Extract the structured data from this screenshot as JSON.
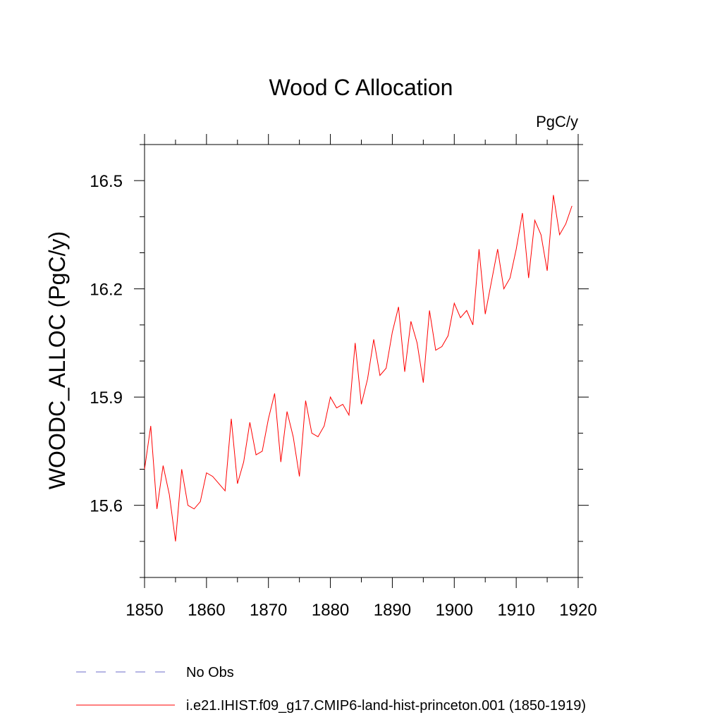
{
  "chart_data": {
    "type": "line",
    "title": "Wood C Allocation",
    "units_label": "PgC/y",
    "ylabel": "WOODC_ALLOC  (PgC/y)",
    "xlabel": "",
    "xlim": [
      1850,
      1920
    ],
    "ylim": [
      15.4,
      16.6
    ],
    "x_ticks": [
      1850,
      1860,
      1870,
      1880,
      1890,
      1900,
      1910,
      1920
    ],
    "x_tick_labels": [
      "1850",
      "1860",
      "1870",
      "1880",
      "1890",
      "1900",
      "1910",
      "1920"
    ],
    "y_ticks": [
      15.6,
      15.9,
      16.2,
      16.5
    ],
    "y_tick_labels": [
      "15.6",
      "15.9",
      "16.2",
      "16.5"
    ],
    "x_minor_ticks": [
      1855,
      1865,
      1875,
      1885,
      1895,
      1905,
      1915
    ],
    "y_minor_ticks": [
      15.4,
      15.5,
      15.7,
      15.8,
      16.0,
      16.1,
      16.3,
      16.4,
      16.6
    ],
    "grid": false,
    "legend_position": "bottom",
    "legend": [
      {
        "label": "No Obs",
        "style": "dashed",
        "color": "#6b6bc8"
      },
      {
        "label": "i.e21.IHIST.f09_g17.CMIP6-land-hist-princeton.001 (1850-1919)",
        "style": "solid",
        "color": "#ff0000"
      }
    ],
    "series": [
      {
        "name": "i.e21.IHIST.f09_g17.CMIP6-land-hist-princeton.001 (1850-1919)",
        "color": "#ff0000",
        "x": [
          1850,
          1851,
          1852,
          1853,
          1854,
          1855,
          1856,
          1857,
          1858,
          1859,
          1860,
          1861,
          1862,
          1863,
          1864,
          1865,
          1866,
          1867,
          1868,
          1869,
          1870,
          1871,
          1872,
          1873,
          1874,
          1875,
          1876,
          1877,
          1878,
          1879,
          1880,
          1881,
          1882,
          1883,
          1884,
          1885,
          1886,
          1887,
          1888,
          1889,
          1890,
          1891,
          1892,
          1893,
          1894,
          1895,
          1896,
          1897,
          1898,
          1899,
          1900,
          1901,
          1902,
          1903,
          1904,
          1905,
          1906,
          1907,
          1908,
          1909,
          1910,
          1911,
          1912,
          1913,
          1914,
          1915,
          1916,
          1917,
          1918,
          1919
        ],
        "values": [
          15.7,
          15.82,
          15.59,
          15.71,
          15.63,
          15.5,
          15.7,
          15.6,
          15.59,
          15.61,
          15.69,
          15.68,
          15.66,
          15.64,
          15.84,
          15.66,
          15.72,
          15.83,
          15.74,
          15.75,
          15.84,
          15.91,
          15.72,
          15.86,
          15.79,
          15.68,
          15.89,
          15.8,
          15.79,
          15.82,
          15.9,
          15.87,
          15.88,
          15.85,
          16.05,
          15.88,
          15.95,
          16.06,
          15.96,
          15.98,
          16.08,
          16.15,
          15.97,
          16.11,
          16.05,
          15.94,
          16.14,
          16.03,
          16.04,
          16.07,
          16.16,
          16.12,
          16.14,
          16.1,
          16.31,
          16.13,
          16.22,
          16.31,
          16.2,
          16.23,
          16.31,
          16.41,
          16.23,
          16.39,
          16.35,
          16.25,
          16.46,
          16.35,
          16.38,
          16.43
        ]
      }
    ]
  }
}
